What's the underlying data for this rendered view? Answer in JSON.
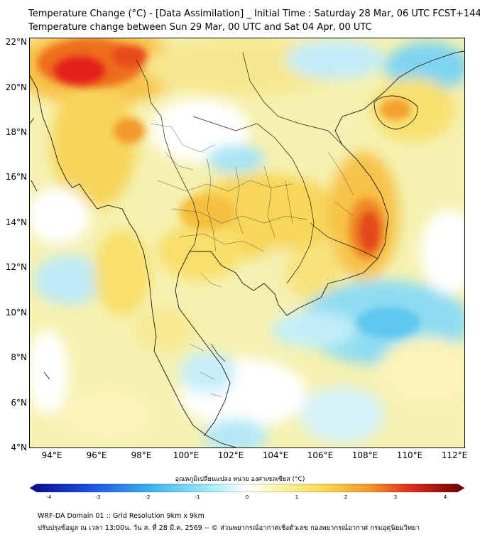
{
  "title_line1": "Temperature Change (°C) - [Data Assimilation] _ Initial Time : Saturday 28 Mar, 06 UTC FCST+144",
  "title_line2": "Temperature change between Sun 29 Mar, 00 UTC and Sat 04 Apr, 00 UTC",
  "lat_labels": [
    "22°N",
    "20°N",
    "18°N",
    "16°N",
    "14°N",
    "12°N",
    "10°N",
    "8°N",
    "6°N",
    "4°N"
  ],
  "lon_labels": [
    "94°E",
    "96°E",
    "98°E",
    "100°E",
    "102°E",
    "104°E",
    "106°E",
    "108°E",
    "110°E",
    "112°E"
  ],
  "colorbar": {
    "title": "อุณหภูมิเปลี่ยนแปลง หน่วย องศาเซลเซียส (°C)",
    "ticks": [
      "-4",
      "-3",
      "-2",
      "-1",
      "0",
      "1",
      "2",
      "3",
      "4"
    ],
    "min": -4,
    "max": 4
  },
  "colors": {
    "cold_max": "#0a0a8c",
    "cold": "#3c8cf0",
    "cool": "#9be6f5",
    "neutral": "#ffffff",
    "warm": "#f8ee82",
    "hot": "#f49a28",
    "hot_max": "#7a0000"
  },
  "footer_line1": "WRF-DA Domain 01 :: Grid Resolution 9km x 9km",
  "footer_line2": "ปรับปรุงข้อมูล ณ เวลา 13:00น. วัน ส. ที่ 28 มี.ค. 2569 -- © ส่วนพยากรณ์อากาศเชิงตัวเลข กองพยากรณ์อากาศ กรมอุตุนิยมวิทยา"
}
